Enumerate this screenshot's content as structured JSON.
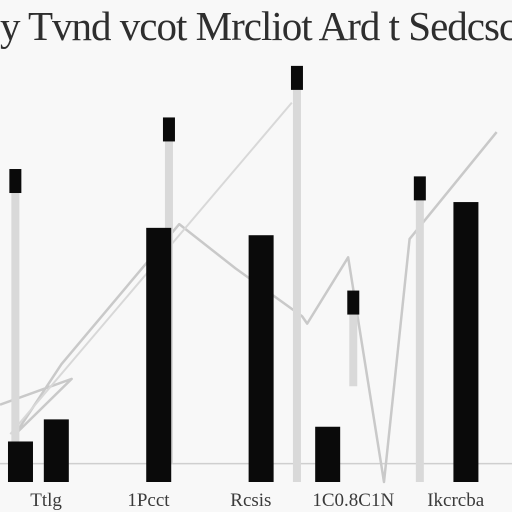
{
  "chart_data": {
    "type": "bar",
    "title": "y Tvnd vcot Mrcliot Ard t Sedcsc",
    "categories": [
      "Ttlg",
      "1Pcct",
      "Rcsis",
      "1C0.8C1N",
      "Ikcrcba"
    ],
    "series": [
      {
        "name": "",
        "values": [
          17,
          69,
          67,
          0,
          76
        ]
      },
      {
        "name": "",
        "values": [
          11,
          0,
          0,
          15,
          0
        ]
      }
    ],
    "markers": [
      {
        "x": 0.03,
        "top": 79,
        "bottom": 0
      },
      {
        "x": 0.33,
        "top": 93,
        "bottom": 5
      },
      {
        "x": 0.58,
        "top": 107,
        "bottom": 0
      },
      {
        "x": 0.69,
        "top": 46,
        "bottom": 26
      },
      {
        "x": 0.82,
        "top": 77,
        "bottom": 0
      }
    ],
    "line": [
      [
        0.0,
        21
      ],
      [
        0.14,
        28
      ],
      [
        0.03,
        13
      ],
      [
        0.12,
        32
      ],
      [
        0.35,
        70
      ],
      [
        0.46,
        58
      ],
      [
        0.59,
        45
      ],
      [
        0.6,
        43
      ],
      [
        0.68,
        61
      ],
      [
        0.75,
        0
      ],
      [
        0.8,
        66
      ],
      [
        0.97,
        95
      ]
    ],
    "line2": [
      [
        0.02,
        13
      ],
      [
        0.57,
        103
      ]
    ],
    "ylim": [
      0,
      120
    ],
    "xlim": [
      0,
      1
    ],
    "grid": false,
    "colors": {
      "bar": "#0a0a0a",
      "line": "#c9c9c9",
      "background": "#f8f8f8",
      "baseline": "#cfcfcf"
    }
  }
}
